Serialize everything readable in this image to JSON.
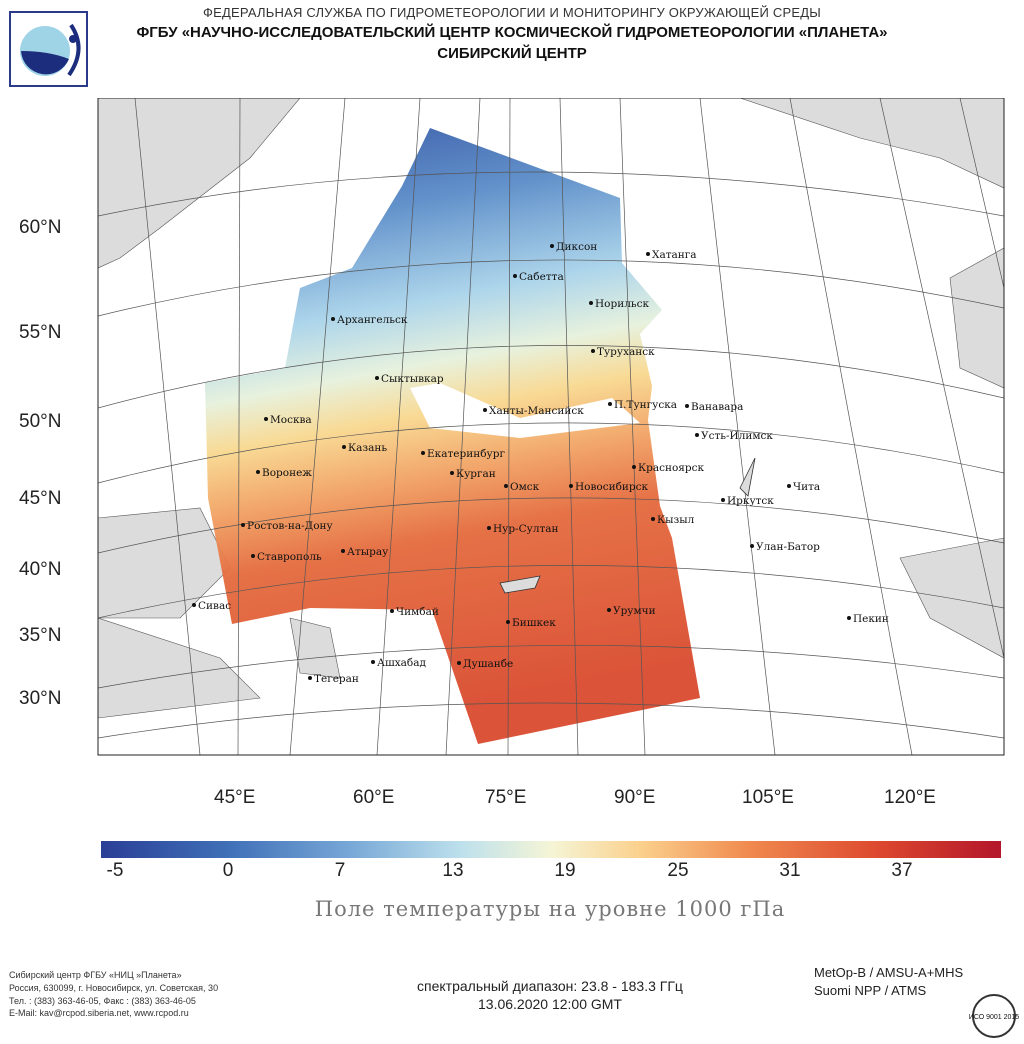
{
  "header": {
    "line1": "ФЕДЕРАЛЬНАЯ СЛУЖБА ПО ГИДРОМЕТЕОРОЛОГИИ И МОНИТОРИНГУ ОКРУЖАЮЩЕЙ СРЕДЫ",
    "line2": "ФГБУ «НАУЧНО-ИССЛЕДОВАТЕЛЬСКИЙ ЦЕНТР КОСМИЧЕСКОЙ ГИДРОМЕТЕОРОЛОГИИ «ПЛАНЕТА»",
    "line3": "СИБИРСКИЙ ЦЕНТР"
  },
  "map": {
    "lat_labels": [
      "60°N",
      "55°N",
      "50°N",
      "45°N",
      "40°N",
      "35°N",
      "30°N"
    ],
    "lon_labels": [
      "45°E",
      "60°E",
      "75°E",
      "90°E",
      "105°E",
      "120°E"
    ],
    "cities": [
      "Диксон",
      "Хатанга",
      "Сабетта",
      "Норильск",
      "Архангельск",
      "Туруханск",
      "Сыктывкар",
      "П.Тунгуска",
      "Ванавара",
      "Ханты-Мансийск",
      "Москва",
      "Усть-Илимск",
      "Казань",
      "Екатеринбург",
      "Красноярск",
      "Воронеж",
      "Курган",
      "Омск",
      "Новосибирск",
      "Чита",
      "Иркутск",
      "Ростов-на-Дону",
      "Кызыл",
      "Нур-Султан",
      "Ставрополь",
      "Атырау",
      "Улан-Батор",
      "Сивас",
      "Чимбай",
      "Урумчи",
      "Бишкек",
      "Пекин",
      "Ашхабад",
      "Душанбе",
      "Тегеран"
    ]
  },
  "colorbar": {
    "ticks": [
      "-5",
      "0",
      "7",
      "13",
      "19",
      "25",
      "31",
      "37"
    ],
    "colors": [
      "#2a3f96",
      "#79a9d7",
      "#f5f5d6",
      "#f08a4f",
      "#b3162a"
    ]
  },
  "field_title": "Поле температуры на уровне 1000 гПа",
  "footer": {
    "org_lines": [
      "Сибирский центр ФГБУ «НИЦ »Планета»",
      "Россия, 630099, г. Новосибирск, ул. Советская, 30",
      "Тел. : (383) 363-46-05, Факс : (383) 363-46-05",
      "E-Mail: kav@rcpod.siberia.net, www.rcpod.ru"
    ],
    "spectral": "спектральный диапазон: 23.8 - 183.3 ГГц",
    "datetime": "13.06.2020 12:00 GMT",
    "sensors": [
      "MetOp-B / AMSU-A+MHS",
      "Suomi NPP / ATMS"
    ],
    "iso_text": "ИСО 9001 2015"
  }
}
